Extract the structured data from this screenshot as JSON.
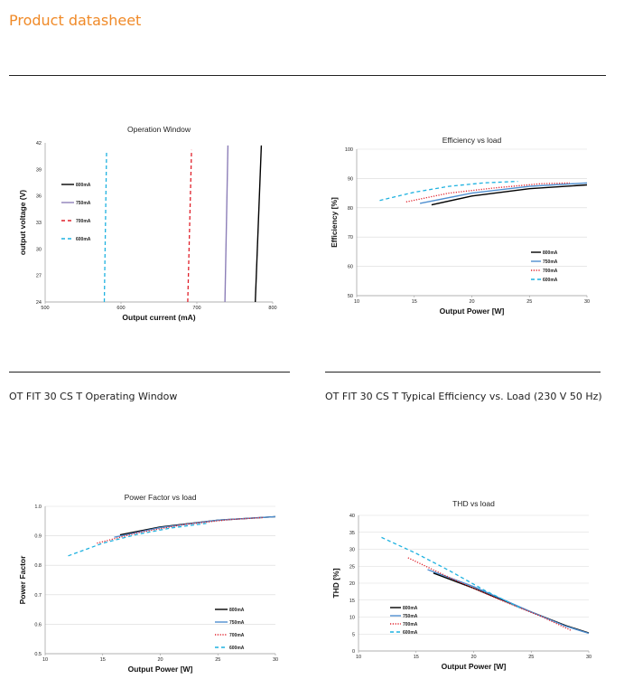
{
  "document": {
    "title": "Product datasheet",
    "captions": {
      "operating_window": "OT FIT 30 CS T Operating Window",
      "efficiency": "OT FIT 30 CS T Typical Efficiency vs. Load (230 V  50 Hz)"
    }
  },
  "chart_data": [
    {
      "type": "line",
      "title": "Operation Window",
      "xlabel": "Output current (mA)",
      "ylabel": "output voltage (V)",
      "xlim": [
        500,
        800
      ],
      "ylim": [
        24,
        42
      ],
      "xticks": [
        "500",
        "600",
        "700",
        "800"
      ],
      "yticks": [
        "24",
        "27",
        "30",
        "33",
        "36",
        "39",
        "42"
      ],
      "grid": false,
      "legend": "left",
      "series": [
        {
          "name": "800mA",
          "color": "#000000",
          "dash": "solid",
          "x": [
            777,
            785
          ],
          "y": [
            24,
            41.7
          ]
        },
        {
          "name": "750mA",
          "color": "#8d7fb8",
          "dash": "solid",
          "x": [
            737,
            741
          ],
          "y": [
            24,
            41.7
          ]
        },
        {
          "name": "700mA",
          "color": "#e0202a",
          "dash": "dashed",
          "x": [
            688,
            693
          ],
          "y": [
            24,
            41.2
          ]
        },
        {
          "name": "600mA",
          "color": "#1fb2e0",
          "dash": "dashed",
          "x": [
            578,
            581
          ],
          "y": [
            24,
            41
          ]
        }
      ]
    },
    {
      "type": "line",
      "title": "Efficiency vs load",
      "xlabel": "Output Power [W]",
      "ylabel": "Efficiency [%]",
      "xlim": [
        10,
        30
      ],
      "ylim": [
        50,
        100
      ],
      "xticks": [
        "10",
        "15",
        "20",
        "25",
        "30"
      ],
      "yticks": [
        "50",
        "60",
        "70",
        "80",
        "90",
        "100"
      ],
      "grid": true,
      "legend": "bottom-right",
      "series": [
        {
          "name": "800mA",
          "color": "#000000",
          "dash": "solid",
          "x": [
            16.5,
            20,
            25,
            30
          ],
          "y": [
            81,
            84,
            86.5,
            87.8
          ]
        },
        {
          "name": "750mA",
          "color": "#4f8fd0",
          "dash": "solid",
          "x": [
            15.5,
            20,
            25,
            30
          ],
          "y": [
            81.5,
            85,
            87.3,
            88.5
          ]
        },
        {
          "name": "700mA",
          "color": "#e0202a",
          "dash": "dotted",
          "x": [
            14.3,
            18,
            22,
            26,
            28.5
          ],
          "y": [
            82,
            85,
            86.8,
            88.2,
            88.5
          ]
        },
        {
          "name": "600mA",
          "color": "#1fb2e0",
          "dash": "dashed",
          "x": [
            12,
            15,
            18,
            21,
            24
          ],
          "y": [
            82.5,
            85.3,
            87.3,
            88.5,
            89
          ]
        }
      ]
    },
    {
      "type": "line",
      "title": "Power Factor vs load",
      "xlabel": "Output Power [W]",
      "ylabel": "Power Factor",
      "xlim": [
        10,
        30
      ],
      "ylim": [
        0.5,
        1.0
      ],
      "xticks": [
        "10",
        "15",
        "20",
        "25",
        "30"
      ],
      "yticks": [
        "0.5",
        "0.6",
        "0.7",
        "0.8",
        "0.9",
        "1.0"
      ],
      "grid": true,
      "legend": "bottom-right",
      "series": [
        {
          "name": "800mA",
          "color": "#000000",
          "dash": "solid",
          "x": [
            16.5,
            20,
            25,
            30
          ],
          "y": [
            0.903,
            0.93,
            0.953,
            0.965
          ]
        },
        {
          "name": "750mA",
          "color": "#4f8fd0",
          "dash": "solid",
          "x": [
            16,
            20,
            25,
            30
          ],
          "y": [
            0.895,
            0.928,
            0.953,
            0.965
          ]
        },
        {
          "name": "700mA",
          "color": "#e0202a",
          "dash": "dotted",
          "x": [
            14.5,
            18,
            22,
            26,
            29
          ],
          "y": [
            0.875,
            0.91,
            0.938,
            0.955,
            0.962
          ]
        },
        {
          "name": "600mA",
          "color": "#1fb2e0",
          "dash": "dashed",
          "x": [
            12,
            15,
            18,
            21,
            24
          ],
          "y": [
            0.832,
            0.875,
            0.905,
            0.927,
            0.942
          ]
        }
      ]
    },
    {
      "type": "line",
      "title": "THD  vs load",
      "xlabel": "Output Power [W]",
      "ylabel": "THD [%]",
      "xlim": [
        10,
        30
      ],
      "ylim": [
        0,
        40
      ],
      "xticks": [
        "10",
        "15",
        "20",
        "25",
        "30"
      ],
      "yticks": [
        "0",
        "5",
        "10",
        "15",
        "20",
        "25",
        "30",
        "35",
        "40"
      ],
      "grid": true,
      "legend": "bottom-left",
      "series": [
        {
          "name": "800mA",
          "color": "#000000",
          "dash": "solid",
          "x": [
            16.5,
            20,
            25,
            28,
            30
          ],
          "y": [
            23,
            18.5,
            11.5,
            7.5,
            5.3
          ]
        },
        {
          "name": "750mA",
          "color": "#4f8fd0",
          "dash": "solid",
          "x": [
            16,
            20,
            25,
            28,
            30
          ],
          "y": [
            24,
            19,
            11.5,
            7.3,
            5.2
          ]
        },
        {
          "name": "700mA",
          "color": "#e0202a",
          "dash": "dotted",
          "x": [
            14.3,
            18,
            22,
            26,
            28.5
          ],
          "y": [
            27.5,
            21.5,
            15.5,
            10,
            6
          ]
        },
        {
          "name": "600mA",
          "color": "#1fb2e0",
          "dash": "dashed",
          "x": [
            12,
            15,
            18,
            21,
            24
          ],
          "y": [
            33.5,
            28.8,
            23.5,
            17.8,
            12.8
          ]
        }
      ]
    }
  ]
}
